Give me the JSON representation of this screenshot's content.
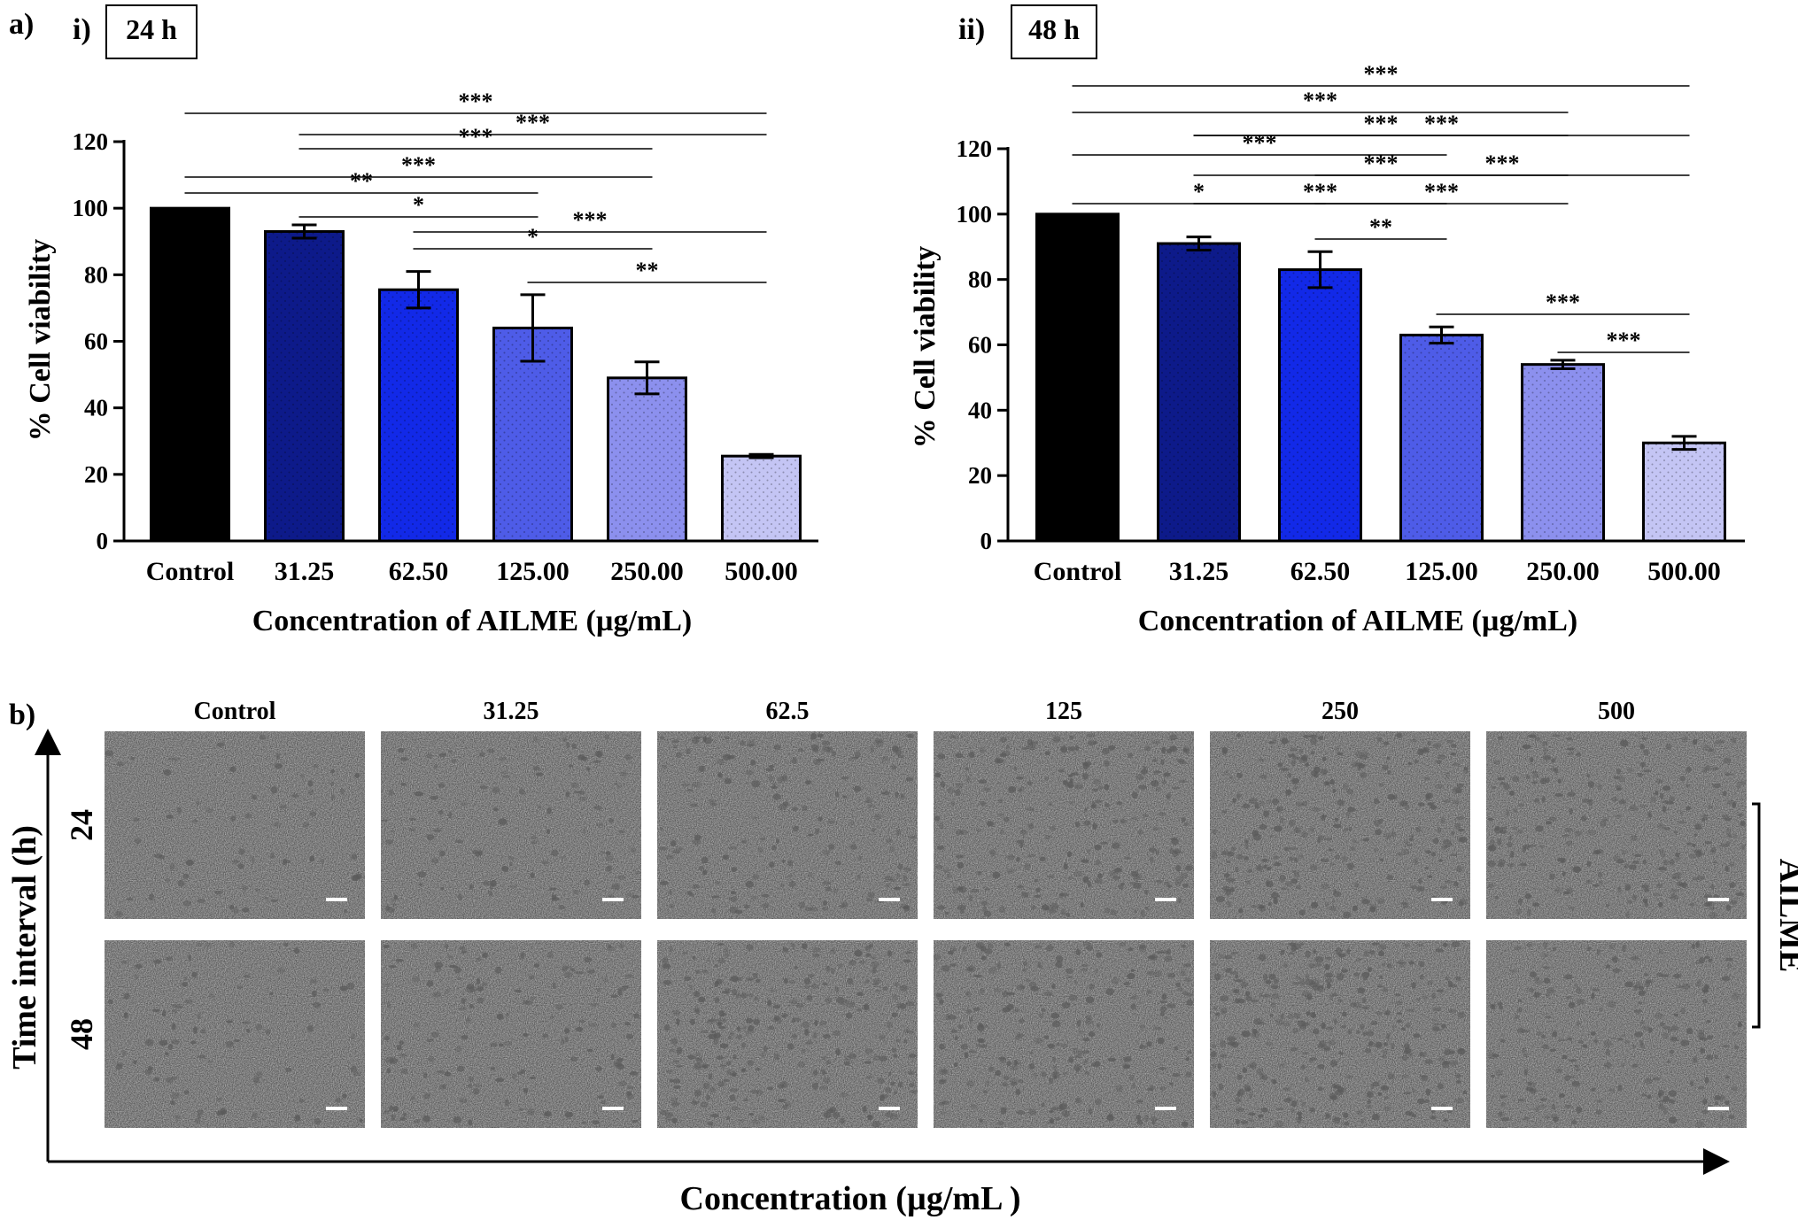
{
  "panel_a_label": "a)",
  "panel_b_label": "b)",
  "chart_data": [
    {
      "type": "bar",
      "panel": "i)",
      "title": "24 h",
      "xlabel": "Concentration of AILME (µg/mL)",
      "ylabel": "% Cell viability",
      "categories": [
        "Control",
        "31.25",
        "62.50",
        "125.00",
        "250.00",
        "500.00"
      ],
      "values": [
        100,
        93,
        75.5,
        64,
        49,
        25.5
      ],
      "errors": [
        0,
        2,
        5.5,
        10,
        4.8,
        0.5
      ],
      "colors": [
        "#000000",
        "#0d1a8a",
        "#1229e8",
        "#4e5ce8",
        "#8c90ee",
        "#c4c5f4"
      ],
      "ylim": [
        0,
        120
      ],
      "yticks": [
        0,
        20,
        40,
        60,
        80,
        100,
        120
      ],
      "grid": false,
      "significance": [
        {
          "from": 0,
          "to": 5,
          "label": "***"
        },
        {
          "from": 1,
          "to": 5,
          "label": "***"
        },
        {
          "from": 1,
          "to": 4,
          "label": "***"
        },
        {
          "from": 0,
          "to": 4,
          "label": "***"
        },
        {
          "from": 0,
          "to": 3,
          "label": "**"
        },
        {
          "from": 1,
          "to": 3,
          "label": "*"
        },
        {
          "from": 2,
          "to": 5,
          "label": "***"
        },
        {
          "from": 2,
          "to": 4,
          "label": "*"
        },
        {
          "from": 3,
          "to": 5,
          "label": "**"
        }
      ]
    },
    {
      "type": "bar",
      "panel": "ii)",
      "title": "48 h",
      "xlabel": "Concentration of AILME (µg/mL)",
      "ylabel": "% Cell viability",
      "categories": [
        "Control",
        "31.25",
        "62.50",
        "125.00",
        "250.00",
        "500.00"
      ],
      "values": [
        100,
        91,
        83,
        63,
        54,
        30
      ],
      "errors": [
        0,
        2,
        5.5,
        2.5,
        1.3,
        2
      ],
      "colors": [
        "#000000",
        "#0d1a8a",
        "#1229e8",
        "#4e5ce8",
        "#8c90ee",
        "#c4c5f4"
      ],
      "ylim": [
        0,
        120
      ],
      "yticks": [
        0,
        20,
        40,
        60,
        80,
        100,
        120
      ],
      "grid": false,
      "significance": [
        {
          "from": 0,
          "to": 5,
          "label": "***"
        },
        {
          "from": 0,
          "to": 4,
          "label": "***"
        },
        {
          "from": 1,
          "to": 4,
          "label": "***"
        },
        {
          "from": 1,
          "to": 5,
          "label": "***"
        },
        {
          "from": 0,
          "to": 3,
          "label": "***"
        },
        {
          "from": 1,
          "to": 4,
          "label": "***"
        },
        {
          "from": 2,
          "to": 5,
          "label": "***"
        },
        {
          "from": 0,
          "to": 2,
          "label": "*"
        },
        {
          "from": 2,
          "to": 4,
          "label": "***"
        },
        {
          "from": 1,
          "to": 3,
          "label": "***"
        },
        {
          "from": 2,
          "to": 3,
          "label": "**"
        },
        {
          "from": 3,
          "to": 5,
          "label": "***"
        },
        {
          "from": 4,
          "to": 5,
          "label": "***"
        }
      ]
    }
  ],
  "micrographs": {
    "columns": [
      "Control",
      "31.25",
      "62.5",
      "125",
      "250",
      "500"
    ],
    "rows": [
      "24",
      "48"
    ],
    "y_axis_title": "Time interval (h)",
    "x_axis_title": "Concentration (µg/mL )",
    "group_label": "AILME",
    "background_color": "#b3b3b3",
    "cell_color": "#5a5a5a"
  }
}
